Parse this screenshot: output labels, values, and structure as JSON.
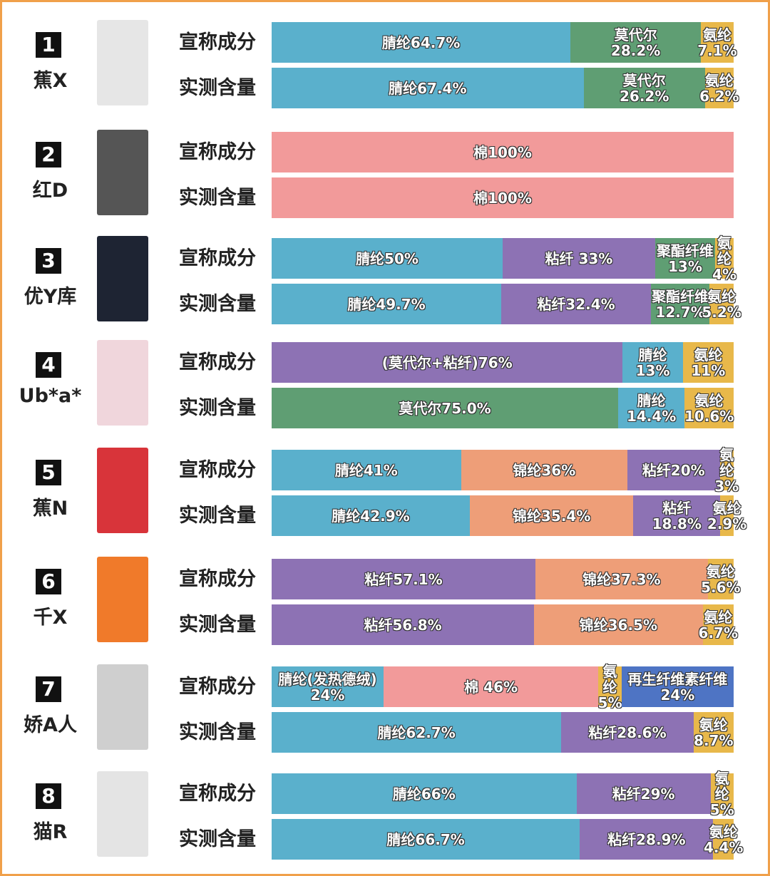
{
  "chart_data": {
    "type": "bar",
    "stacked": true,
    "orientation": "horizontal",
    "row_labels": [
      "宣称成分",
      "实测含量"
    ],
    "colors": {
      "腈纶": "#5ab0cc",
      "莫代尔": "#5f9e73",
      "氨纶": "#e8b84a",
      "棉": "#f29a9a",
      "粘纤": "#8d72b4",
      "聚酯纤维": "#5f9e73",
      "锦纶": "#ee9e78",
      "(莫代尔+粘纤)": "#8d72b4",
      "腈纶(发热德绒)": "#5ab0cc",
      "再生纤维素纤维": "#4e74c4"
    },
    "products": [
      {
        "num": "1",
        "brand": "蕉X",
        "image_color": "#e6e6e6",
        "claimed": [
          {
            "name": "腈纶",
            "value": 64.7,
            "label": "腈纶64.7%"
          },
          {
            "name": "莫代尔",
            "value": 28.2,
            "label": "莫代尔\n28.2%"
          },
          {
            "name": "氨纶",
            "value": 7.1,
            "label": "氨纶\n7.1%"
          }
        ],
        "measured": [
          {
            "name": "腈纶",
            "value": 67.4,
            "label": "腈纶67.4%"
          },
          {
            "name": "莫代尔",
            "value": 26.2,
            "label": "莫代尔\n26.2%"
          },
          {
            "name": "氨纶",
            "value": 6.2,
            "label": "氨纶\n6.2%"
          }
        ]
      },
      {
        "num": "2",
        "brand": "红D",
        "image_color": "#555555",
        "claimed": [
          {
            "name": "棉",
            "value": 100,
            "label": "棉100%"
          }
        ],
        "measured": [
          {
            "name": "棉",
            "value": 100,
            "label": "棉100%"
          }
        ]
      },
      {
        "num": "3",
        "brand": "优Y库",
        "image_color": "#1e2433",
        "claimed": [
          {
            "name": "腈纶",
            "value": 50,
            "label": "腈纶50%"
          },
          {
            "name": "粘纤",
            "value": 33,
            "label": "粘纤 33%"
          },
          {
            "name": "聚酯纤维",
            "value": 13,
            "label": "聚酯纤维\n13%"
          },
          {
            "name": "氨纶",
            "value": 4,
            "label": "氨纶\n4%"
          }
        ],
        "measured": [
          {
            "name": "腈纶",
            "value": 49.7,
            "label": "腈纶49.7%"
          },
          {
            "name": "粘纤",
            "value": 32.4,
            "label": "粘纤32.4%"
          },
          {
            "name": "聚酯纤维",
            "value": 12.7,
            "label": "聚酯纤维\n12.7%"
          },
          {
            "name": "氨纶",
            "value": 5.2,
            "label": "氨纶\n5.2%"
          }
        ]
      },
      {
        "num": "4",
        "brand": "Ub*a*",
        "image_color": "#f0d6dc",
        "claimed": [
          {
            "name": "(莫代尔+粘纤)",
            "value": 76,
            "label": "(莫代尔+粘纤)76%"
          },
          {
            "name": "腈纶",
            "value": 13,
            "label": "腈纶\n13%"
          },
          {
            "name": "氨纶",
            "value": 11,
            "label": "氨纶\n11%"
          }
        ],
        "measured": [
          {
            "name": "莫代尔",
            "value": 75.0,
            "label": "莫代尔75.0%"
          },
          {
            "name": "腈纶",
            "value": 14.4,
            "label": "腈纶\n14.4%"
          },
          {
            "name": "氨纶",
            "value": 10.6,
            "label": "氨纶\n10.6%"
          }
        ]
      },
      {
        "num": "5",
        "brand": "蕉N",
        "image_color": "#d8343a",
        "claimed": [
          {
            "name": "腈纶",
            "value": 41,
            "label": "腈纶41%"
          },
          {
            "name": "锦纶",
            "value": 36,
            "label": "锦纶36%"
          },
          {
            "name": "粘纤",
            "value": 20,
            "label": "粘纤20%"
          },
          {
            "name": "氨纶",
            "value": 3,
            "label": "氨纶\n3%"
          }
        ],
        "measured": [
          {
            "name": "腈纶",
            "value": 42.9,
            "label": "腈纶42.9%"
          },
          {
            "name": "锦纶",
            "value": 35.4,
            "label": "锦纶35.4%"
          },
          {
            "name": "粘纤",
            "value": 18.8,
            "label": "粘纤\n18.8%"
          },
          {
            "name": "氨纶",
            "value": 2.9,
            "label": "氨纶\n2.9%"
          }
        ]
      },
      {
        "num": "6",
        "brand": "千X",
        "image_color": "#f07a2a",
        "claimed": [
          {
            "name": "粘纤",
            "value": 57.1,
            "label": "粘纤57.1%"
          },
          {
            "name": "锦纶",
            "value": 37.3,
            "label": "锦纶37.3%"
          },
          {
            "name": "氨纶",
            "value": 5.6,
            "label": "氨纶\n5.6%"
          }
        ],
        "measured": [
          {
            "name": "粘纤",
            "value": 56.8,
            "label": "粘纤56.8%"
          },
          {
            "name": "锦纶",
            "value": 36.5,
            "label": "锦纶36.5%"
          },
          {
            "name": "氨纶",
            "value": 6.7,
            "label": "氨纶\n6.7%"
          }
        ]
      },
      {
        "num": "7",
        "brand": "娇A人",
        "image_color": "#cfcfcf",
        "claimed": [
          {
            "name": "腈纶(发热德绒)",
            "value": 24,
            "label": "腈纶(发热德绒)\n24%"
          },
          {
            "name": "棉",
            "value": 46,
            "label": "棉 46%"
          },
          {
            "name": "氨纶",
            "value": 5,
            "label": "氨纶\n5%"
          },
          {
            "name": "再生纤维素纤维",
            "value": 24,
            "label": "再生纤维素纤维\n24%"
          }
        ],
        "measured": [
          {
            "name": "腈纶",
            "value": 62.7,
            "label": "腈纶62.7%"
          },
          {
            "name": "粘纤",
            "value": 28.6,
            "label": "粘纤28.6%"
          },
          {
            "name": "氨纶",
            "value": 8.7,
            "label": "氨纶\n8.7%"
          }
        ]
      },
      {
        "num": "8",
        "brand": "猫R",
        "image_color": "#e4e4e4",
        "claimed": [
          {
            "name": "腈纶",
            "value": 66,
            "label": "腈纶66%"
          },
          {
            "name": "粘纤",
            "value": 29,
            "label": "粘纤29%"
          },
          {
            "name": "氨纶",
            "value": 5,
            "label": "氨纶\n5%"
          }
        ],
        "measured": [
          {
            "name": "腈纶",
            "value": 66.7,
            "label": "腈纶66.7%"
          },
          {
            "name": "粘纤",
            "value": 28.9,
            "label": "粘纤28.9%"
          },
          {
            "name": "氨纶",
            "value": 4.4,
            "label": "氨纶\n4.4%"
          }
        ]
      }
    ]
  }
}
